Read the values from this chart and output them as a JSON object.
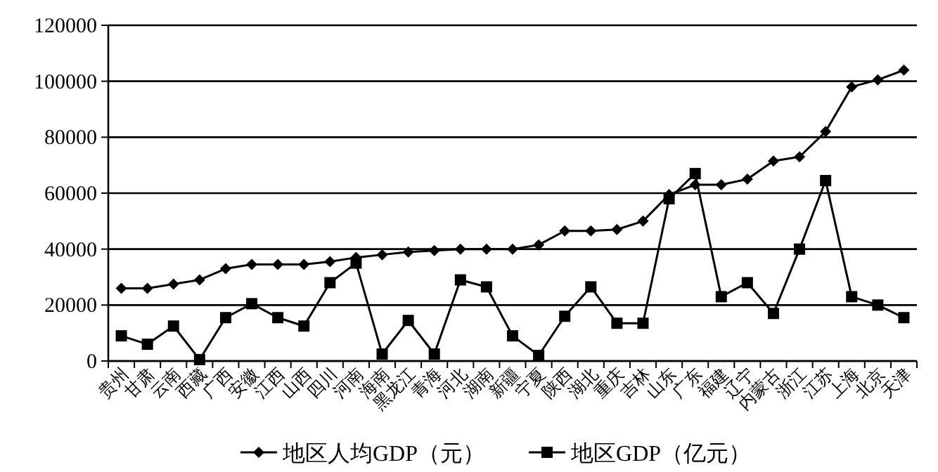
{
  "chart_data": {
    "type": "line",
    "categories": [
      "贵州",
      "甘肃",
      "云南",
      "西藏",
      "广西",
      "安徽",
      "江西",
      "山西",
      "四川",
      "河南",
      "海南",
      "黑龙江",
      "青海",
      "河北",
      "湖南",
      "新疆",
      "宁夏",
      "陕西",
      "湖北",
      "重庆",
      "吉林",
      "山东",
      "广东",
      "福建",
      "辽宁",
      "内蒙古",
      "浙江",
      "江苏",
      "上海",
      "北京",
      "天津"
    ],
    "series": [
      {
        "name": "地区人均GDP（元）",
        "color": "#000000",
        "marker": "diamond",
        "values": [
          26000,
          26000,
          27500,
          29000,
          33000,
          34500,
          34500,
          34500,
          35500,
          37000,
          38000,
          39000,
          39500,
          40000,
          40000,
          40000,
          41500,
          46500,
          46500,
          47000,
          50000,
          59500,
          63000,
          63000,
          65000,
          71500,
          73000,
          82000,
          98000,
          100500,
          104000
        ]
      },
      {
        "name": "地区GDP（亿元）",
        "color": "#000000",
        "marker": "square",
        "values": [
          9000,
          6000,
          12500,
          500,
          15500,
          20500,
          15500,
          12500,
          28000,
          35000,
          2500,
          14500,
          2500,
          29000,
          26500,
          9000,
          2000,
          16000,
          26500,
          13500,
          13500,
          58000,
          67000,
          23000,
          28000,
          17000,
          40000,
          64500,
          23000,
          20000,
          15500
        ]
      }
    ],
    "ylim": [
      0,
      120000
    ],
    "yticks": [
      0,
      20000,
      40000,
      60000,
      80000,
      100000,
      120000
    ],
    "grid": "y",
    "legend": "bottom",
    "line_style": "solid"
  }
}
